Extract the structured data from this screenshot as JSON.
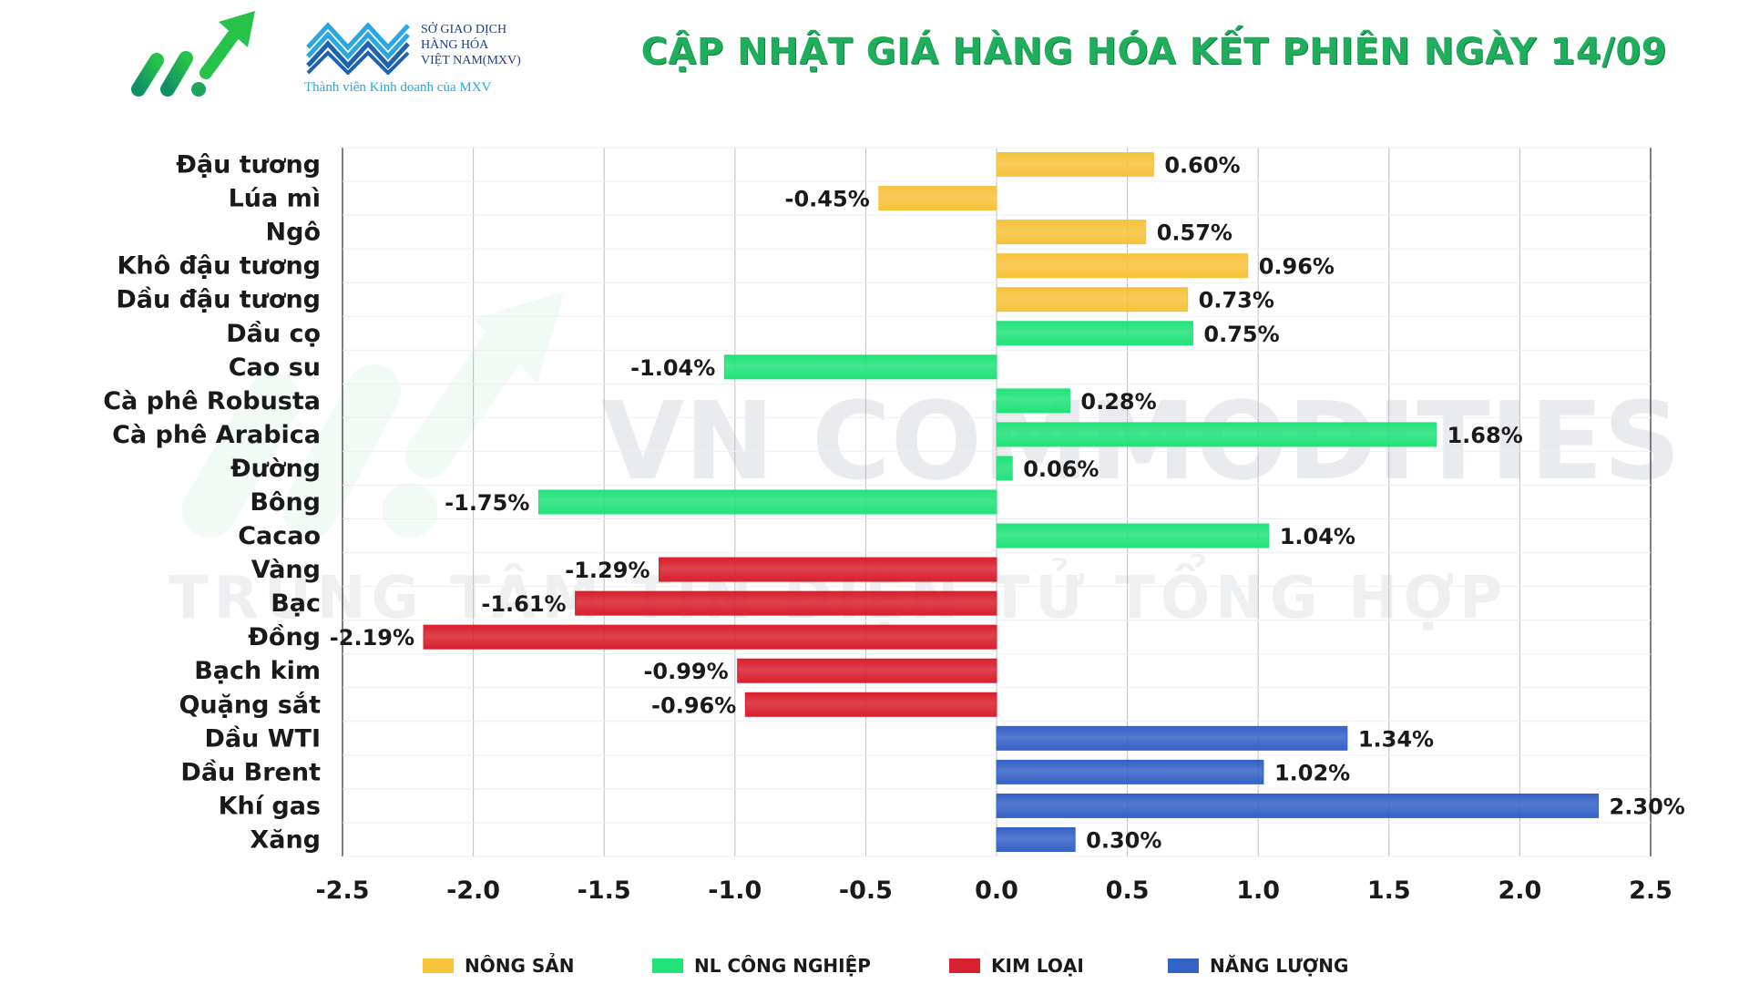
{
  "header": {
    "title": "CẬP NHẬT GIÁ HÀNG HÓA KẾT PHIÊN NGÀY 14/09",
    "mxv_line1": "SỞ GIAO DỊCH",
    "mxv_line2": "HÀNG HÓA",
    "mxv_line3": "VIỆT NAM(MXV)",
    "mxv_tagline": "Thành viên Kinh doanh của MXV"
  },
  "watermark": {
    "line1": "VN COMMODITIES",
    "line2": "TRUNG TÂM TIN ĐIỆN TỬ TỔNG HỢP"
  },
  "colors": {
    "nong_san": "#f7c23c",
    "nl_cong_nghiep": "#22e37a",
    "kim_loai": "#d9202e",
    "nang_luong": "#3562c6",
    "title": "#1fae5b"
  },
  "chart_data": {
    "type": "bar",
    "orientation": "horizontal",
    "xlim": [
      -2.5,
      2.5
    ],
    "xticks": [
      "-2.5",
      "-2.0",
      "-1.5",
      "-1.0",
      "-0.5",
      "0.0",
      "0.5",
      "1.0",
      "1.5",
      "2.0",
      "2.5"
    ],
    "grid": "vertical",
    "legend_position": "bottom",
    "legend": [
      {
        "key": "nong_san",
        "label": "NÔNG SẢN"
      },
      {
        "key": "nl_cong_nghiep",
        "label": "NL CÔNG NGHIỆP"
      },
      {
        "key": "kim_loai",
        "label": "KIM LOẠI"
      },
      {
        "key": "nang_luong",
        "label": "NĂNG LƯỢNG"
      }
    ],
    "bars": [
      {
        "label": "Đậu tương",
        "value": 0.6,
        "text": "0.60%",
        "group": "nong_san"
      },
      {
        "label": "Lúa mì",
        "value": -0.45,
        "text": "-0.45%",
        "group": "nong_san"
      },
      {
        "label": "Ngô",
        "value": 0.57,
        "text": "0.57%",
        "group": "nong_san"
      },
      {
        "label": "Khô đậu tương",
        "value": 0.96,
        "text": "0.96%",
        "group": "nong_san"
      },
      {
        "label": "Dầu đậu tương",
        "value": 0.73,
        "text": "0.73%",
        "group": "nong_san"
      },
      {
        "label": "Dầu cọ",
        "value": 0.75,
        "text": "0.75%",
        "group": "nl_cong_nghiep"
      },
      {
        "label": "Cao su",
        "value": -1.04,
        "text": "-1.04%",
        "group": "nl_cong_nghiep"
      },
      {
        "label": "Cà phê Robusta",
        "value": 0.28,
        "text": "0.28%",
        "group": "nl_cong_nghiep"
      },
      {
        "label": "Cà phê Arabica",
        "value": 1.68,
        "text": "1.68%",
        "group": "nl_cong_nghiep"
      },
      {
        "label": "Đường",
        "value": 0.06,
        "text": "0.06%",
        "group": "nl_cong_nghiep"
      },
      {
        "label": "Bông",
        "value": -1.75,
        "text": "-1.75%",
        "group": "nl_cong_nghiep"
      },
      {
        "label": "Cacao",
        "value": 1.04,
        "text": "1.04%",
        "group": "nl_cong_nghiep"
      },
      {
        "label": "Vàng",
        "value": -1.29,
        "text": "-1.29%",
        "group": "kim_loai"
      },
      {
        "label": "Bạc",
        "value": -1.61,
        "text": "-1.61%",
        "group": "kim_loai"
      },
      {
        "label": "Đồng",
        "value": -2.19,
        "text": "-2.19%",
        "group": "kim_loai"
      },
      {
        "label": "Bạch kim",
        "value": -0.99,
        "text": "-0.99%",
        "group": "kim_loai"
      },
      {
        "label": "Quặng sắt",
        "value": -0.96,
        "text": "-0.96%",
        "group": "kim_loai"
      },
      {
        "label": "Dầu WTI",
        "value": 1.34,
        "text": "1.34%",
        "group": "nang_luong"
      },
      {
        "label": "Dầu Brent",
        "value": 1.02,
        "text": "1.02%",
        "group": "nang_luong"
      },
      {
        "label": "Khí gas",
        "value": 2.3,
        "text": "2.30%",
        "group": "nang_luong"
      },
      {
        "label": "Xăng",
        "value": 0.3,
        "text": "0.30%",
        "group": "nang_luong"
      }
    ]
  }
}
